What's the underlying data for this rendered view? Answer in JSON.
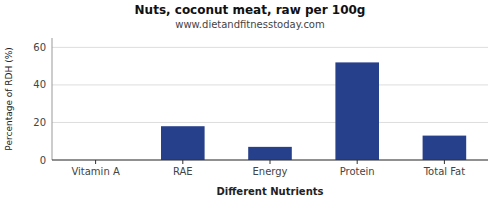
{
  "chart_data": {
    "type": "bar",
    "title": "Nuts, coconut meat, raw per 100g",
    "subtitle": "www.dietandfitnesstoday.com",
    "categories": [
      "Vitamin A",
      "RAE",
      "Energy",
      "Protein",
      "Total Fat"
    ],
    "values": [
      0.0,
      18.0,
      7.0,
      52.0,
      13.0
    ],
    "color": "#27408B",
    "xlabel": "Different Nutrients",
    "ylabel": "Percentage of RDH (%)",
    "ylim": [
      0,
      65
    ],
    "yticks": [
      0,
      20,
      40,
      60
    ],
    "grid": true
  }
}
